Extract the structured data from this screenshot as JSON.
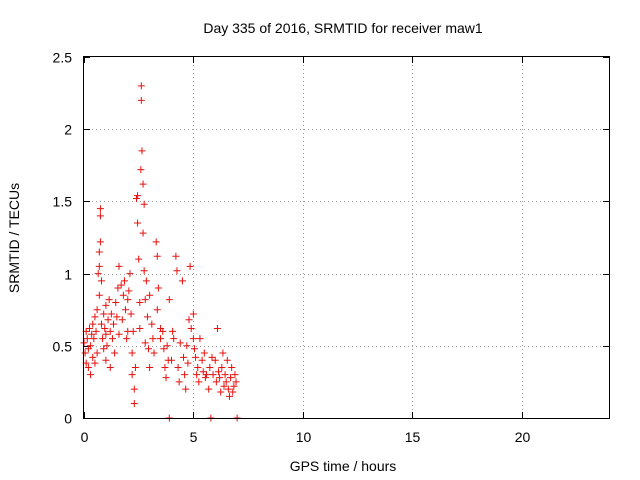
{
  "chart_data": {
    "type": "scatter",
    "title": "Day 335 of 2016, SRMTID for receiver maw1",
    "xlabel": "GPS time / hours",
    "ylabel": "SRMTID / TECUs",
    "xlim": [
      0,
      24
    ],
    "ylim": [
      0,
      2.5
    ],
    "xticks": [
      0,
      5,
      10,
      15,
      20
    ],
    "xtick_labels": [
      "0",
      "5",
      "10",
      "15",
      "20"
    ],
    "yticks": [
      0,
      0.5,
      1,
      1.5,
      2,
      2.5
    ],
    "ytick_labels": [
      "0",
      "0.5",
      "1",
      "1.5",
      "2",
      "2.5"
    ],
    "grid": true,
    "marker": "+",
    "series": [
      {
        "name": "SRMTID",
        "color": "#e8110e",
        "points": [
          [
            0.0,
            0.52
          ],
          [
            0.05,
            0.45
          ],
          [
            0.1,
            0.6
          ],
          [
            0.1,
            0.38
          ],
          [
            0.15,
            0.55
          ],
          [
            0.2,
            0.48
          ],
          [
            0.2,
            0.35
          ],
          [
            0.25,
            0.62
          ],
          [
            0.3,
            0.5
          ],
          [
            0.3,
            0.3
          ],
          [
            0.35,
            0.58
          ],
          [
            0.4,
            0.42
          ],
          [
            0.4,
            0.65
          ],
          [
            0.45,
            0.55
          ],
          [
            0.5,
            0.7
          ],
          [
            0.5,
            0.38
          ],
          [
            0.55,
            0.6
          ],
          [
            0.6,
            0.75
          ],
          [
            0.6,
            0.45
          ],
          [
            0.65,
            1.0
          ],
          [
            0.7,
            1.05
          ],
          [
            0.7,
            1.15
          ],
          [
            0.7,
            0.85
          ],
          [
            0.75,
            1.4
          ],
          [
            0.75,
            1.45
          ],
          [
            0.75,
            1.22
          ],
          [
            0.8,
            0.95
          ],
          [
            0.8,
            0.65
          ],
          [
            0.85,
            0.55
          ],
          [
            0.9,
            0.72
          ],
          [
            0.9,
            0.48
          ],
          [
            0.95,
            0.62
          ],
          [
            1.0,
            0.58
          ],
          [
            1.0,
            0.78
          ],
          [
            1.0,
            0.4
          ],
          [
            1.05,
            0.5
          ],
          [
            1.1,
            0.68
          ],
          [
            1.15,
            0.82
          ],
          [
            1.2,
            0.6
          ],
          [
            1.2,
            0.35
          ],
          [
            1.25,
            0.72
          ],
          [
            1.3,
            0.55
          ],
          [
            1.35,
            0.65
          ],
          [
            1.4,
            0.45
          ],
          [
            1.45,
            0.8
          ],
          [
            1.5,
            0.7
          ],
          [
            1.55,
            0.9
          ],
          [
            1.6,
            1.05
          ],
          [
            1.6,
            0.58
          ],
          [
            1.7,
            0.92
          ],
          [
            1.75,
            0.68
          ],
          [
            1.8,
            0.85
          ],
          [
            1.85,
            0.95
          ],
          [
            1.9,
            0.75
          ],
          [
            1.95,
            0.55
          ],
          [
            2.0,
            0.82
          ],
          [
            2.0,
            0.6
          ],
          [
            2.05,
            0.88
          ],
          [
            2.1,
            1.0
          ],
          [
            2.15,
            0.72
          ],
          [
            2.2,
            0.45
          ],
          [
            2.2,
            0.3
          ],
          [
            2.25,
            0.6
          ],
          [
            2.3,
            0.2
          ],
          [
            2.3,
            0.1
          ],
          [
            2.35,
            0.35
          ],
          [
            2.4,
            1.52
          ],
          [
            2.45,
            1.54
          ],
          [
            2.45,
            1.35
          ],
          [
            2.5,
            1.1
          ],
          [
            2.55,
            0.8
          ],
          [
            2.55,
            0.62
          ],
          [
            2.6,
            1.72
          ],
          [
            2.62,
            2.3
          ],
          [
            2.62,
            2.2
          ],
          [
            2.65,
            1.85
          ],
          [
            2.7,
            1.62
          ],
          [
            2.7,
            1.28
          ],
          [
            2.75,
            1.48
          ],
          [
            2.75,
            1.02
          ],
          [
            2.8,
            0.82
          ],
          [
            2.8,
            0.52
          ],
          [
            2.85,
            0.95
          ],
          [
            2.9,
            0.7
          ],
          [
            2.95,
            0.48
          ],
          [
            3.0,
            0.85
          ],
          [
            3.0,
            0.35
          ],
          [
            3.1,
            0.65
          ],
          [
            3.15,
            0.55
          ],
          [
            3.2,
            0.45
          ],
          [
            3.3,
            1.22
          ],
          [
            3.35,
            1.12
          ],
          [
            3.35,
            0.75
          ],
          [
            3.4,
            0.9
          ],
          [
            3.5,
            0.55
          ],
          [
            3.5,
            0.62
          ],
          [
            3.6,
            0.6
          ],
          [
            3.65,
            0.48
          ],
          [
            3.7,
            0.35
          ],
          [
            3.75,
            0.28
          ],
          [
            3.8,
            0.5
          ],
          [
            3.85,
            0.4
          ],
          [
            3.9,
            0.82
          ],
          [
            3.9,
            0.0
          ],
          [
            4.0,
            0.4
          ],
          [
            4.05,
            0.6
          ],
          [
            4.1,
            0.55
          ],
          [
            4.2,
            1.12
          ],
          [
            4.25,
            1.02
          ],
          [
            4.3,
            0.35
          ],
          [
            4.35,
            0.25
          ],
          [
            4.4,
            0.52
          ],
          [
            4.5,
            0.95
          ],
          [
            4.55,
            0.42
          ],
          [
            4.6,
            0.3
          ],
          [
            4.65,
            0.2
          ],
          [
            4.7,
            0.5
          ],
          [
            4.75,
            0.38
          ],
          [
            4.8,
            0.68
          ],
          [
            4.85,
            1.05
          ],
          [
            4.9,
            0.62
          ],
          [
            5.0,
            0.55
          ],
          [
            5.0,
            0.72
          ],
          [
            5.05,
            0.48
          ],
          [
            5.1,
            0.42
          ],
          [
            5.15,
            0.3
          ],
          [
            5.2,
            0.35
          ],
          [
            5.25,
            0.25
          ],
          [
            5.3,
            0.55
          ],
          [
            5.4,
            0.4
          ],
          [
            5.45,
            0.32
          ],
          [
            5.5,
            0.45
          ],
          [
            5.55,
            0.28
          ],
          [
            5.6,
            0.3
          ],
          [
            5.7,
            0.2
          ],
          [
            5.75,
            0.35
          ],
          [
            5.8,
            0.0
          ],
          [
            5.85,
            0.42
          ],
          [
            5.9,
            0.3
          ],
          [
            6.0,
            0.4
          ],
          [
            6.05,
            0.25
          ],
          [
            6.1,
            0.62
          ],
          [
            6.15,
            0.32
          ],
          [
            6.2,
            0.28
          ],
          [
            6.25,
            0.18
          ],
          [
            6.3,
            0.35
          ],
          [
            6.35,
            0.45
          ],
          [
            6.4,
            0.22
          ],
          [
            6.45,
            0.3
          ],
          [
            6.5,
            0.25
          ],
          [
            6.55,
            0.4
          ],
          [
            6.6,
            0.2
          ],
          [
            6.65,
            0.15
          ],
          [
            6.7,
            0.28
          ],
          [
            6.75,
            0.35
          ],
          [
            6.8,
            0.18
          ],
          [
            6.85,
            0.22
          ],
          [
            6.9,
            0.3
          ],
          [
            6.95,
            0.25
          ],
          [
            7.0,
            0.0
          ]
        ]
      }
    ]
  }
}
